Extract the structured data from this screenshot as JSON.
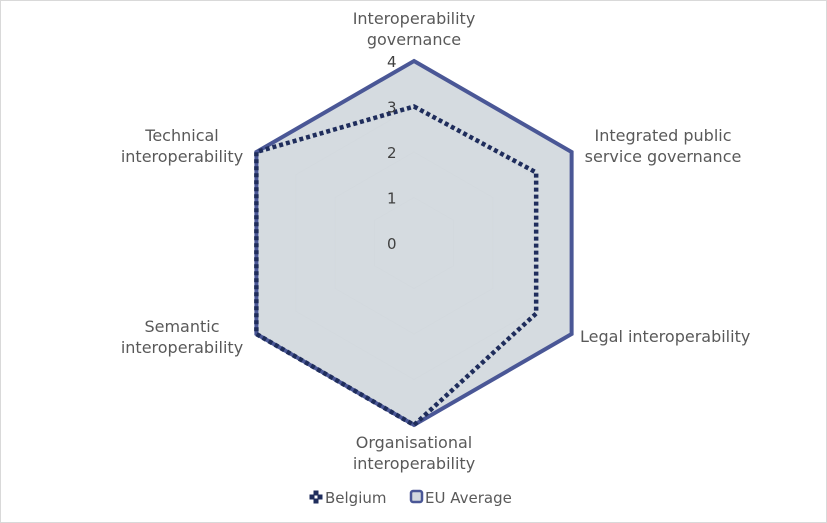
{
  "chart_data": {
    "type": "radar",
    "axes": [
      [
        "Interoperability",
        "governance"
      ],
      [
        "Integrated public",
        "service governance"
      ],
      [
        "Legal interoperability"
      ],
      [
        "Organisational",
        "interoperability"
      ],
      [
        "Semantic",
        "interoperability"
      ],
      [
        "Technical",
        "interoperability"
      ]
    ],
    "ticks": [
      "0",
      "1",
      "2",
      "3",
      "4"
    ],
    "rmin": 0,
    "rmax": 4,
    "grid": true,
    "legend_position": "bottom",
    "series": [
      {
        "name": "Belgium",
        "values": [
          3.0,
          3.1,
          3.1,
          4.0,
          4.0,
          4.0
        ],
        "color": "#1f2d5c",
        "style": "dotted"
      },
      {
        "name": "EU Average",
        "values": [
          4.0,
          4.0,
          4.0,
          4.0,
          4.0,
          4.0
        ],
        "color": "#4a5796",
        "style": "solid",
        "fill": "#d3d9de"
      }
    ]
  }
}
